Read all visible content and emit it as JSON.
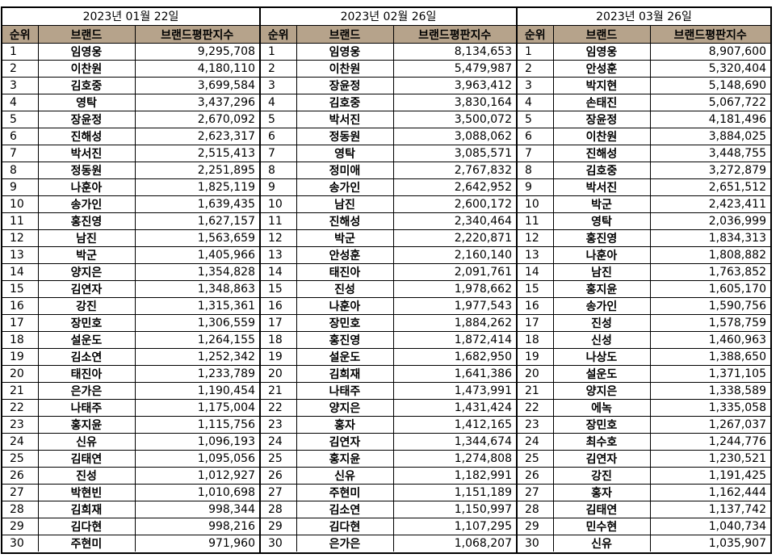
{
  "headers": {
    "rank": "순위",
    "brand": "브랜드",
    "score": "브랜드평판지수"
  },
  "panels": [
    {
      "date": "2023년 01월 22일",
      "rows": [
        [
          "1",
          "임영웅",
          "9,295,708"
        ],
        [
          "2",
          "이찬원",
          "4,180,110"
        ],
        [
          "3",
          "김호중",
          "3,699,584"
        ],
        [
          "4",
          "영탁",
          "3,437,296"
        ],
        [
          "5",
          "장윤정",
          "2,670,092"
        ],
        [
          "6",
          "진해성",
          "2,623,317"
        ],
        [
          "7",
          "박서진",
          "2,515,413"
        ],
        [
          "8",
          "정동원",
          "2,251,895"
        ],
        [
          "9",
          "나훈아",
          "1,825,119"
        ],
        [
          "10",
          "송가인",
          "1,639,435"
        ],
        [
          "11",
          "홍진영",
          "1,627,157"
        ],
        [
          "12",
          "남진",
          "1,563,659"
        ],
        [
          "13",
          "박군",
          "1,405,966"
        ],
        [
          "14",
          "양지은",
          "1,354,828"
        ],
        [
          "15",
          "김연자",
          "1,348,863"
        ],
        [
          "16",
          "강진",
          "1,315,361"
        ],
        [
          "17",
          "장민호",
          "1,306,559"
        ],
        [
          "18",
          "설운도",
          "1,264,155"
        ],
        [
          "19",
          "김소연",
          "1,252,342"
        ],
        [
          "20",
          "태진아",
          "1,233,789"
        ],
        [
          "21",
          "은가은",
          "1,190,454"
        ],
        [
          "22",
          "나태주",
          "1,175,004"
        ],
        [
          "23",
          "홍지윤",
          "1,115,756"
        ],
        [
          "24",
          "신유",
          "1,096,193"
        ],
        [
          "25",
          "김태연",
          "1,095,056"
        ],
        [
          "26",
          "진성",
          "1,012,927"
        ],
        [
          "27",
          "박현빈",
          "1,010,698"
        ],
        [
          "28",
          "김희재",
          "998,344"
        ],
        [
          "29",
          "김다현",
          "998,216"
        ],
        [
          "30",
          "주현미",
          "971,960"
        ]
      ]
    },
    {
      "date": "2023년 02월 26일",
      "rows": [
        [
          "1",
          "임영웅",
          "8,134,653"
        ],
        [
          "2",
          "이찬원",
          "5,479,987"
        ],
        [
          "3",
          "장윤정",
          "3,963,412"
        ],
        [
          "4",
          "김호중",
          "3,830,164"
        ],
        [
          "5",
          "박서진",
          "3,500,072"
        ],
        [
          "6",
          "정동원",
          "3,088,062"
        ],
        [
          "7",
          "영탁",
          "3,085,571"
        ],
        [
          "8",
          "정미애",
          "2,767,832"
        ],
        [
          "9",
          "송가인",
          "2,642,952"
        ],
        [
          "10",
          "남진",
          "2,600,172"
        ],
        [
          "11",
          "진해성",
          "2,340,464"
        ],
        [
          "12",
          "박군",
          "2,220,871"
        ],
        [
          "13",
          "안성훈",
          "2,160,140"
        ],
        [
          "14",
          "태진아",
          "2,091,761"
        ],
        [
          "15",
          "진성",
          "1,978,662"
        ],
        [
          "16",
          "나훈아",
          "1,977,543"
        ],
        [
          "17",
          "장민호",
          "1,884,262"
        ],
        [
          "18",
          "홍진영",
          "1,872,414"
        ],
        [
          "19",
          "설운도",
          "1,682,950"
        ],
        [
          "20",
          "김희재",
          "1,641,386"
        ],
        [
          "21",
          "나태주",
          "1,473,991"
        ],
        [
          "22",
          "양지은",
          "1,431,424"
        ],
        [
          "23",
          "홍자",
          "1,412,165"
        ],
        [
          "24",
          "김연자",
          "1,344,674"
        ],
        [
          "25",
          "홍지윤",
          "1,274,808"
        ],
        [
          "26",
          "신유",
          "1,182,991"
        ],
        [
          "27",
          "주현미",
          "1,151,189"
        ],
        [
          "28",
          "김소연",
          "1,150,997"
        ],
        [
          "29",
          "김다현",
          "1,107,295"
        ],
        [
          "30",
          "은가은",
          "1,068,207"
        ]
      ]
    },
    {
      "date": "2023년 03월 26일",
      "rows": [
        [
          "1",
          "임영웅",
          "8,907,600"
        ],
        [
          "2",
          "안성훈",
          "5,320,404"
        ],
        [
          "3",
          "박지현",
          "5,148,690"
        ],
        [
          "4",
          "손태진",
          "5,067,722"
        ],
        [
          "5",
          "장윤정",
          "4,181,496"
        ],
        [
          "6",
          "이찬원",
          "3,884,025"
        ],
        [
          "7",
          "진해성",
          "3,448,755"
        ],
        [
          "8",
          "김호중",
          "3,272,879"
        ],
        [
          "9",
          "박서진",
          "2,651,512"
        ],
        [
          "10",
          "박군",
          "2,423,411"
        ],
        [
          "11",
          "영탁",
          "2,036,999"
        ],
        [
          "12",
          "홍진영",
          "1,834,313"
        ],
        [
          "13",
          "나훈아",
          "1,808,882"
        ],
        [
          "14",
          "남진",
          "1,763,852"
        ],
        [
          "15",
          "홍지윤",
          "1,605,170"
        ],
        [
          "16",
          "송가인",
          "1,590,756"
        ],
        [
          "17",
          "진성",
          "1,578,759"
        ],
        [
          "18",
          "신성",
          "1,460,963"
        ],
        [
          "19",
          "나상도",
          "1,388,650"
        ],
        [
          "20",
          "설운도",
          "1,371,105"
        ],
        [
          "21",
          "양지은",
          "1,338,589"
        ],
        [
          "22",
          "에녹",
          "1,335,058"
        ],
        [
          "23",
          "장민호",
          "1,267,037"
        ],
        [
          "24",
          "최수호",
          "1,244,776"
        ],
        [
          "25",
          "김연자",
          "1,230,521"
        ],
        [
          "26",
          "강진",
          "1,191,425"
        ],
        [
          "27",
          "홍자",
          "1,162,444"
        ],
        [
          "28",
          "김태연",
          "1,137,742"
        ],
        [
          "29",
          "민수현",
          "1,040,734"
        ],
        [
          "30",
          "신유",
          "1,035,907"
        ]
      ]
    }
  ],
  "colors": {
    "header_bg": "#b6a38b",
    "border": "#000000"
  }
}
